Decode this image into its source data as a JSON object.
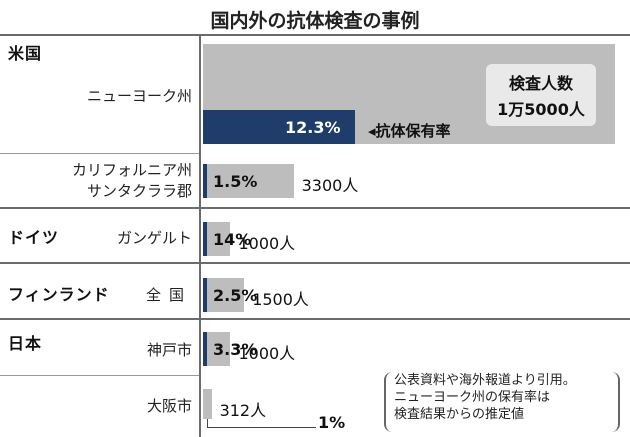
{
  "title": "国内外の抗体検査の事例",
  "legend": {
    "count_title": "検査人数",
    "count_value": "1万5000人",
    "rate_title": "抗体保有率"
  },
  "note_lines": [
    "公表資料や海外報道より引用。",
    "ニューヨーク州の保有率は",
    "検査結果からの推定値"
  ],
  "colors": {
    "rate_bar": "#1f3d6b",
    "count_bar": "#bdbdbd"
  },
  "chart_data": {
    "type": "bar",
    "title": "国内外の抗体検査の事例",
    "categories": [
      "ニューヨーク州",
      "カリフォルニア州サンタクララ郡",
      "ガンゲルト",
      "全国",
      "神戸市",
      "大阪市"
    ],
    "groups": [
      {
        "country": "米国",
        "regions": [
          "ニューヨーク州",
          "カリフォルニア州 サンタクララ郡"
        ]
      },
      {
        "country": "ドイツ",
        "regions": [
          "ガンゲルト"
        ]
      },
      {
        "country": "フィンランド",
        "regions": [
          "全国"
        ]
      },
      {
        "country": "日本",
        "regions": [
          "神戸市",
          "大阪市"
        ]
      }
    ],
    "series": [
      {
        "name": "抗体保有率",
        "unit": "%",
        "values": [
          12.3,
          1.5,
          14,
          2.5,
          3.3,
          1
        ],
        "labels": [
          "12.3%",
          "1.5%",
          "14%",
          "2.5%",
          "3.3%",
          "1%"
        ]
      },
      {
        "name": "検査人数",
        "unit": "人",
        "values": [
          15000,
          3300,
          1000,
          1500,
          1000,
          312
        ],
        "labels": [
          "1万5000人",
          "3300人",
          "1000人",
          "1500人",
          "1000人",
          "312人"
        ]
      }
    ]
  }
}
